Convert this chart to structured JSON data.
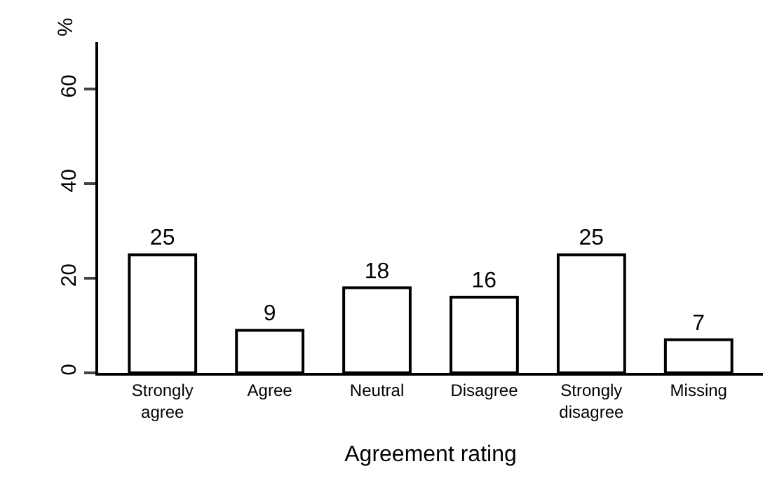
{
  "chart_data": {
    "type": "bar",
    "xlabel": "Agreement rating",
    "ylabel": "%",
    "categories": [
      "Strongly agree",
      "Agree",
      "Neutral",
      "Disagree",
      "Strongly disagree",
      "Missing"
    ],
    "values": [
      25,
      9,
      18,
      16,
      25,
      7
    ],
    "color": "#ffffff",
    "ylim": [
      0,
      70
    ],
    "yticks": [
      0,
      20,
      40,
      60
    ],
    "data_labels": true
  }
}
